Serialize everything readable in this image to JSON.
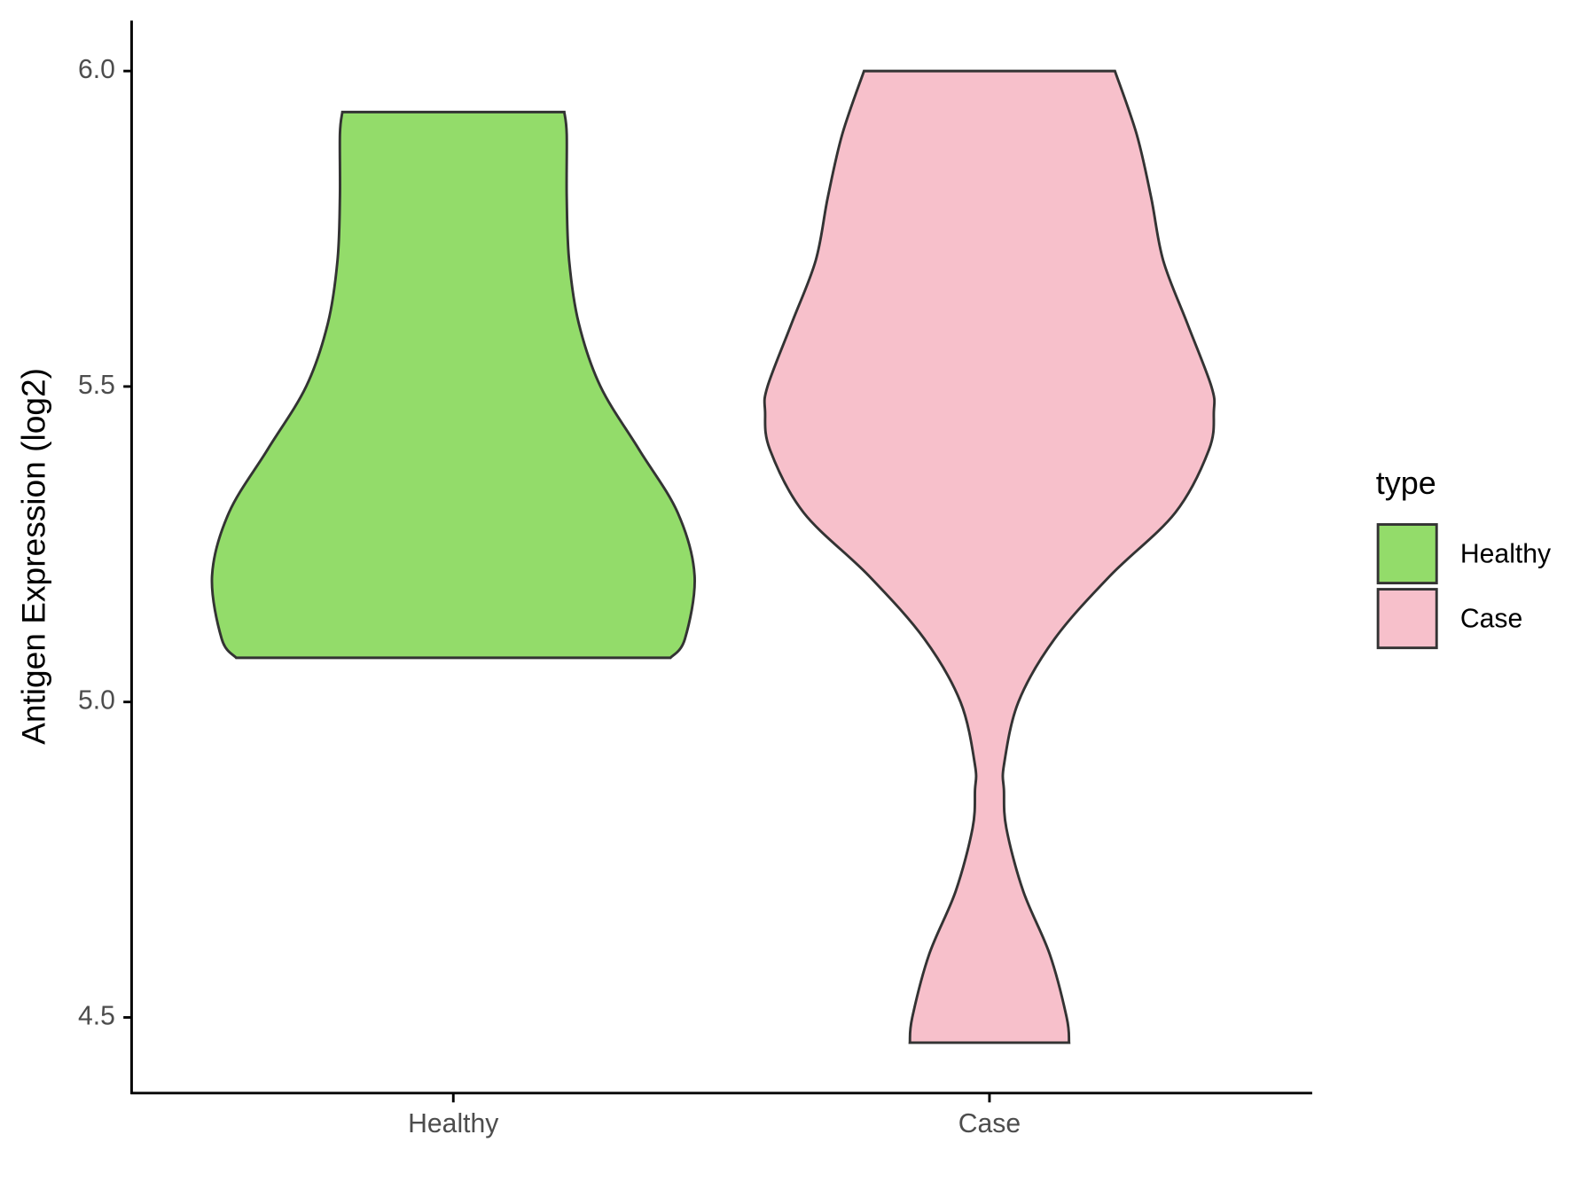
{
  "chart_data": {
    "type": "violin",
    "y_label": "Antigen Expression (log2)",
    "categories": [
      "Healthy",
      "Case"
    ],
    "legend_title": "type",
    "outline_color": "#333333",
    "series": [
      {
        "name": "Healthy",
        "color": "#93dc6a",
        "y": [
          5.07,
          5.1,
          5.2,
          5.3,
          5.4,
          5.5,
          5.6,
          5.7,
          5.8,
          5.9,
          5.935
        ],
        "width": [
          0.9,
          0.96,
          1.0,
          0.93,
          0.77,
          0.61,
          0.52,
          0.48,
          0.47,
          0.47,
          0.46
        ]
      },
      {
        "name": "Case",
        "color": "#f7c0cb",
        "y": [
          4.46,
          4.5,
          4.6,
          4.7,
          4.8,
          4.86,
          4.9,
          5.0,
          5.1,
          5.2,
          5.3,
          5.4,
          5.46,
          5.5,
          5.6,
          5.7,
          5.8,
          5.9,
          6.0
        ],
        "width": [
          0.33,
          0.32,
          0.25,
          0.14,
          0.07,
          0.06,
          0.06,
          0.12,
          0.27,
          0.5,
          0.77,
          0.91,
          0.93,
          0.92,
          0.82,
          0.72,
          0.67,
          0.61,
          0.52
        ]
      }
    ],
    "ylim": [
      4.38,
      6.08
    ],
    "yticks": [
      {
        "value": 4.5,
        "label": "4.5"
      },
      {
        "value": 5,
        "label": "5.0"
      },
      {
        "value": 5.5,
        "label": "5.5"
      },
      {
        "value": 6,
        "label": "6.0"
      }
    ]
  }
}
